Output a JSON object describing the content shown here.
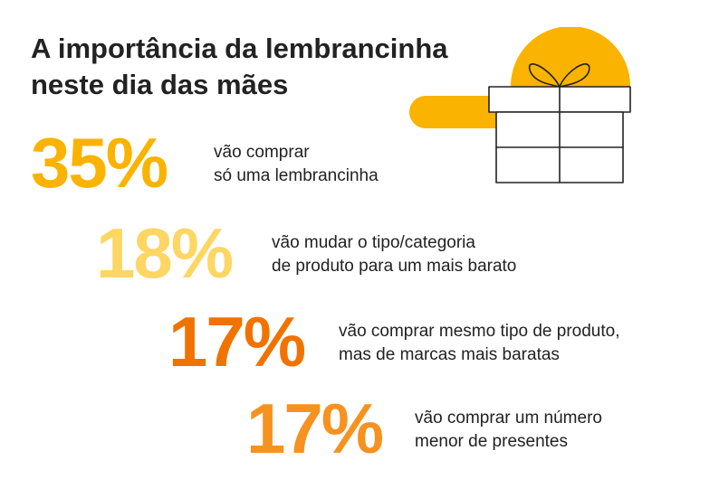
{
  "title": {
    "line1": "A importância da lembrancinha",
    "line2": "neste dia das mães"
  },
  "colors": {
    "accent_yellow": "#F9B300",
    "light_yellow": "#FDD663",
    "dark_orange": "#F07300",
    "orange": "#F69220",
    "text": "#222222"
  },
  "illustration": {
    "icon": "gift-box-icon"
  },
  "chart_data": {
    "type": "table",
    "unit": "%",
    "items": [
      {
        "value": 35,
        "label": "35%",
        "line1": "vão comprar",
        "line2": "só uma lembrancinha",
        "color": "#F9B300"
      },
      {
        "value": 18,
        "label": "18%",
        "line1": "vão mudar o tipo/categoria",
        "line2": "de produto para um mais barato",
        "color": "#FDD663"
      },
      {
        "value": 17,
        "label": "17%",
        "line1": "vão comprar mesmo tipo de produto,",
        "line2": "mas de marcas mais baratas",
        "color": "#F07300"
      },
      {
        "value": 17,
        "label": "17%",
        "line1": "vão comprar um número",
        "line2": "menor de presentes",
        "color": "#F69220"
      }
    ]
  }
}
